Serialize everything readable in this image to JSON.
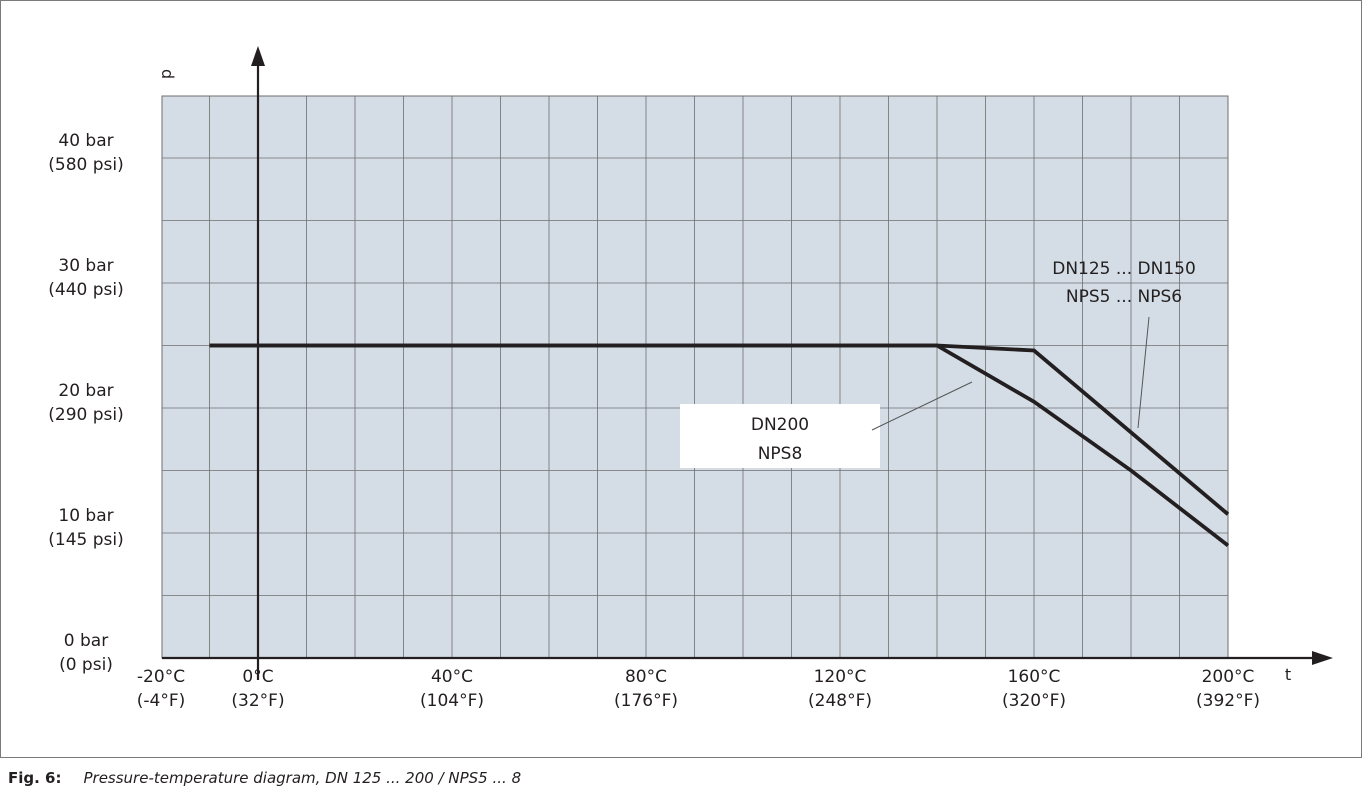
{
  "chart_data": {
    "type": "line",
    "xlabel": "t",
    "ylabel": "p",
    "xlim": [
      -20,
      200
    ],
    "ylim": [
      0,
      45
    ],
    "grid": true,
    "x_ticks": [
      {
        "value": -20,
        "label": "-20°C",
        "sub": "(-4°F)"
      },
      {
        "value": 0,
        "label": "0°C",
        "sub": "(32°F)"
      },
      {
        "value": 40,
        "label": "40°C",
        "sub": "(104°F)"
      },
      {
        "value": 80,
        "label": "80°C",
        "sub": "(176°F)"
      },
      {
        "value": 120,
        "label": "120°C",
        "sub": "(248°F)"
      },
      {
        "value": 160,
        "label": "160°C",
        "sub": "(320°F)"
      },
      {
        "value": 200,
        "label": "200°C",
        "sub": "(392°F)"
      }
    ],
    "y_ticks": [
      {
        "value": 0,
        "label": "0 bar",
        "sub": "(0 psi)"
      },
      {
        "value": 10,
        "label": "10 bar",
        "sub": "(145 psi)"
      },
      {
        "value": 20,
        "label": "20 bar",
        "sub": "(290 psi)"
      },
      {
        "value": 30,
        "label": "30 bar",
        "sub": "(440 psi)"
      },
      {
        "value": 40,
        "label": "40 bar",
        "sub": "(580 psi)"
      }
    ],
    "series": [
      {
        "name": "DN125 ... DN150 / NPS5 ... NPS6",
        "label_lines": [
          "DN125 ... DN150",
          "NPS5 ... NPS6"
        ],
        "points": [
          [
            -10,
            25
          ],
          [
            140,
            25
          ],
          [
            160,
            24.6
          ],
          [
            200,
            11.5
          ]
        ]
      },
      {
        "name": "DN200 / NPS8",
        "label_lines": [
          "DN200",
          "NPS8"
        ],
        "points": [
          [
            -10,
            25
          ],
          [
            140,
            25
          ],
          [
            160,
            20.5
          ],
          [
            180,
            15
          ],
          [
            200,
            9
          ]
        ]
      }
    ],
    "colors": {
      "plot_bg": "#d4dde5",
      "grid": "#6f6f6f",
      "line": "#231f20"
    }
  },
  "caption": {
    "fig": "Fig. 6:",
    "text": "Pressure-temperature diagram,  DN 125 ... 200 / NPS5 ... 8"
  }
}
